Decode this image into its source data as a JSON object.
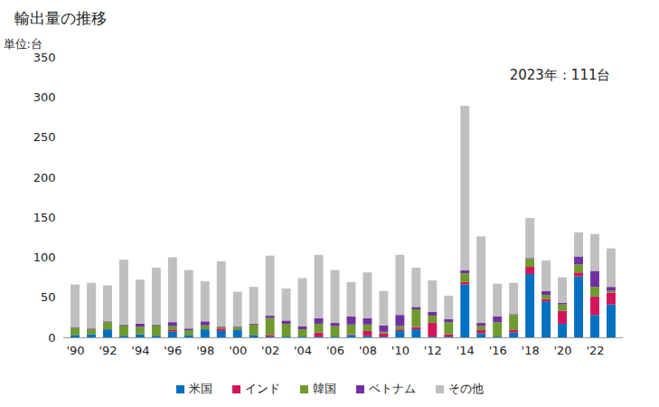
{
  "chart_data": {
    "type": "bar",
    "title": "輸出量の推移",
    "y_label": "単位:台",
    "annotation": "2023年：111台",
    "stacked": true,
    "grid": false,
    "legend": "bottom",
    "data_labels": false,
    "categories": [
      "'90",
      null,
      "'92",
      null,
      "'94",
      null,
      "'96",
      null,
      "'98",
      null,
      "'00",
      null,
      "'02",
      null,
      "'04",
      null,
      "'06",
      null,
      "'08",
      null,
      "'10",
      null,
      "'12",
      null,
      "'14",
      null,
      "'16",
      null,
      "'18",
      null,
      "'20",
      null,
      "'22",
      null
    ],
    "ylim": [
      0,
      350
    ],
    "yticks": [
      0,
      50,
      100,
      150,
      200,
      250,
      300,
      350
    ],
    "series": [
      {
        "name": "米国",
        "color": "#0070c0",
        "values": [
          3,
          4,
          10,
          2,
          4,
          2,
          7,
          3,
          10,
          8,
          9,
          3,
          1,
          1,
          1,
          1,
          1,
          3,
          2,
          1,
          8,
          10,
          1,
          1,
          66,
          5,
          1,
          6,
          79,
          45,
          17,
          76,
          28,
          41
        ]
      },
      {
        "name": "インド",
        "color": "#d4145a",
        "values": [
          0,
          0,
          0,
          0,
          0,
          0,
          2,
          0,
          0,
          3,
          0,
          0,
          2,
          0,
          0,
          5,
          0,
          1,
          6,
          4,
          2,
          3,
          17,
          3,
          3,
          4,
          0,
          3,
          9,
          3,
          16,
          5,
          23,
          15
        ]
      },
      {
        "name": "韓国",
        "color": "#6f9a2e",
        "values": [
          9,
          6,
          9,
          13,
          9,
          13,
          5,
          6,
          5,
          2,
          4,
          13,
          21,
          16,
          9,
          11,
          13,
          12,
          8,
          2,
          4,
          22,
          9,
          15,
          11,
          5,
          18,
          19,
          10,
          5,
          8,
          10,
          12,
          2
        ]
      },
      {
        "name": "ベトナム",
        "color": "#7030a0",
        "values": [
          1,
          1,
          1,
          1,
          4,
          1,
          5,
          2,
          5,
          1,
          1,
          1,
          3,
          4,
          4,
          7,
          4,
          10,
          8,
          8,
          14,
          3,
          5,
          4,
          4,
          4,
          7,
          1,
          1,
          5,
          2,
          10,
          20,
          5
        ]
      },
      {
        "name": "その他",
        "color": "#bfbfbf",
        "values": [
          53,
          57,
          45,
          81,
          55,
          71,
          81,
          73,
          50,
          81,
          43,
          46,
          75,
          40,
          60,
          79,
          66,
          43,
          57,
          43,
          75,
          49,
          39,
          29,
          205,
          108,
          41,
          39,
          50,
          38,
          32,
          30,
          46,
          48
        ]
      }
    ]
  }
}
